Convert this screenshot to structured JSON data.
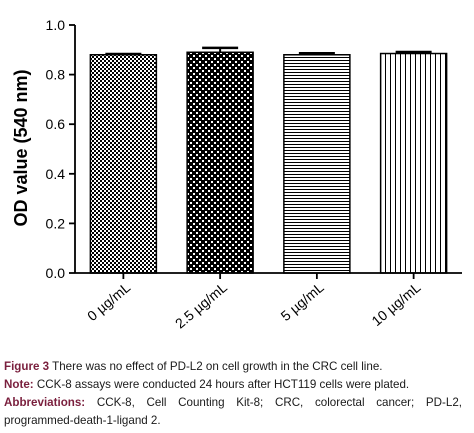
{
  "chart_data": {
    "type": "bar",
    "categories": [
      "0 µg/mL",
      "2.5 µg/mL",
      "5 µg/mL",
      "10 µg/mL"
    ],
    "values": [
      0.88,
      0.89,
      0.88,
      0.885
    ],
    "errors": [
      0.003,
      0.018,
      0.006,
      0.006
    ],
    "ylabel": "OD value (540 nm)",
    "xlabel": "",
    "ylim": [
      0,
      1.0
    ],
    "yticks": [
      "0.0",
      "0.2",
      "0.4",
      "0.6",
      "0.8",
      "1.0"
    ],
    "bar_patterns": [
      "dense-checker",
      "dotted-checker",
      "horizontal-lines",
      "vertical-lines"
    ],
    "grid": false,
    "legend": "none"
  },
  "caption": {
    "figure_label": "Figure 3",
    "figure_text": "There was no effect of PD-L2 on cell growth in the CRC cell line.",
    "note_label": "Note:",
    "note_text": "CCK-8 assays were conducted 24 hours after HCT119 cells were plated.",
    "abbrev_label": "Abbreviations:",
    "abbrev_text": "CCK-8, Cell Counting Kit-8; CRC, colorectal cancer; PD-L2, programmed-death-1-ligand 2."
  }
}
